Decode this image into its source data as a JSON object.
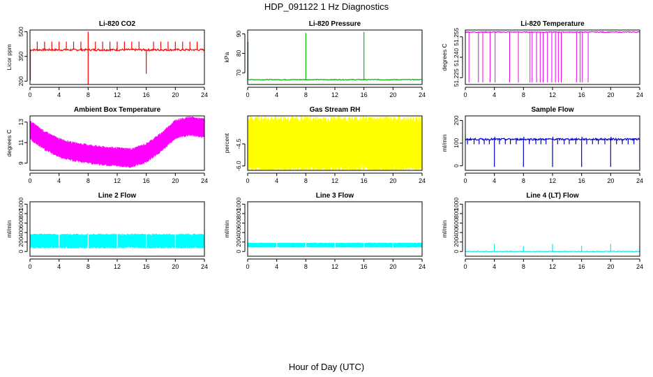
{
  "title": "HDP_091122  1 Hz Diagnostics",
  "xlabel": "Hour of Day (UTC)",
  "chart_data": [
    {
      "type": "line",
      "title": "Li-820 CO2",
      "ylabel": "Licor ppm",
      "color": "#ff0000",
      "xlim": [
        0,
        24
      ],
      "xticks": [
        "0",
        "4",
        "8",
        "12",
        "16",
        "20",
        "24"
      ],
      "ylim": [
        180,
        510
      ],
      "yticks": [
        {
          "v": 200,
          "t": "200"
        },
        {
          "v": 350,
          "t": "350"
        },
        {
          "v": 500,
          "t": "500"
        }
      ],
      "baseline": 390,
      "noise": 6,
      "spikes": [
        1,
        2,
        3,
        4,
        5,
        6,
        7,
        9,
        10,
        11,
        12,
        13,
        14,
        15,
        17,
        18,
        19,
        20,
        21,
        22,
        23
      ],
      "spike_to": 440,
      "big_spikes": [
        {
          "x": 0.05,
          "to": 205
        },
        {
          "x": 8.0,
          "to": 180
        },
        {
          "x": 8.0,
          "to": 500
        },
        {
          "x": 16.0,
          "to": 245
        }
      ]
    },
    {
      "type": "line",
      "title": "Li-820 Pressure",
      "ylabel": "kPa",
      "color": "#00bb00",
      "xlim": [
        0,
        24
      ],
      "xticks": [
        "0",
        "4",
        "8",
        "12",
        "16",
        "20",
        "24"
      ],
      "ylim": [
        64,
        92
      ],
      "yticks": [
        {
          "v": 70,
          "t": "70"
        },
        {
          "v": 80,
          "t": "80"
        },
        {
          "v": 90,
          "t": "90"
        }
      ],
      "baseline": 66.5,
      "noise": 0.2,
      "spikes": [],
      "spike_to": 66.5,
      "big_spikes": [
        {
          "x": 0.05,
          "to": 86
        },
        {
          "x": 8.0,
          "to": 90.5
        },
        {
          "x": 16.0,
          "to": 91
        },
        {
          "x": 24.0,
          "to": 90
        }
      ]
    },
    {
      "type": "line",
      "title": "Li-820 Temperature",
      "ylabel": "degrees C",
      "color": "#ee00ee",
      "xlim": [
        0,
        24
      ],
      "xticks": [
        "0",
        "4",
        "8",
        "12",
        "16",
        "20",
        "24"
      ],
      "ylim": [
        51.22,
        51.26
      ],
      "yticks": [
        {
          "v": 51.225,
          "t": "51.225"
        },
        {
          "v": 51.24,
          "t": "51.240"
        },
        {
          "v": 51.255,
          "t": "51.255"
        }
      ],
      "baseline": 51.2585,
      "noise": 0.0003,
      "spikes": [],
      "spike_to": 51.2585,
      "drops": [
        0.5,
        1.8,
        2.4,
        3.4,
        4.1,
        6.1,
        7.3,
        8.9,
        9.2,
        9.8,
        10.3,
        10.7,
        11.3,
        11.9,
        12.4,
        12.8,
        13.2,
        15.3,
        15.8,
        16.1,
        16.9
      ],
      "drop_to": 51.2215
    },
    {
      "type": "band",
      "title": "Ambient Box Temperature",
      "ylabel": "degrees C",
      "color": "#ff00ff",
      "xlim": [
        0,
        24
      ],
      "xticks": [
        "0",
        "4",
        "8",
        "12",
        "16",
        "20",
        "24"
      ],
      "ylim": [
        8.3,
        13.6
      ],
      "yticks": [
        {
          "v": 9,
          "t": "9"
        },
        {
          "v": 11,
          "t": "11"
        },
        {
          "v": 13,
          "t": "13"
        }
      ],
      "curve": [
        [
          0,
          12.2
        ],
        [
          2,
          11.2
        ],
        [
          4,
          10.5
        ],
        [
          6,
          10.1
        ],
        [
          8,
          9.9
        ],
        [
          10,
          9.7
        ],
        [
          12,
          9.6
        ],
        [
          14,
          9.5
        ],
        [
          16,
          10.0
        ],
        [
          18,
          11.0
        ],
        [
          20,
          12.3
        ],
        [
          22,
          12.6
        ],
        [
          24,
          12.4
        ]
      ],
      "spread": 1.5
    },
    {
      "type": "band",
      "title": "Gas Stream RH",
      "ylabel": "percent",
      "color": "#ffff00",
      "xlim": [
        0,
        24
      ],
      "xticks": [
        "0",
        "4",
        "8",
        "12",
        "16",
        "20",
        "24"
      ],
      "ylim": [
        -6.3,
        -2.6
      ],
      "yticks": [
        {
          "v": -4.5,
          "t": "-4.5"
        },
        {
          "v": -6.0,
          "t": "-6.0"
        }
      ],
      "curve": [
        [
          0,
          -4.5
        ],
        [
          24,
          -4.5
        ]
      ],
      "spread": 2.9
    },
    {
      "type": "line",
      "title": "Sample Flow",
      "ylabel": "ml/min",
      "color": "#0000cc",
      "xlim": [
        0,
        24
      ],
      "xticks": [
        "0",
        "4",
        "8",
        "12",
        "16",
        "20",
        "24"
      ],
      "ylim": [
        -20,
        220
      ],
      "yticks": [
        {
          "v": 0,
          "t": "0"
        },
        {
          "v": 100,
          "t": "100"
        },
        {
          "v": 200,
          "t": "200"
        }
      ],
      "baseline": 117,
      "noise": 4,
      "spikes": [
        0.3,
        1.2,
        1.9,
        2.6,
        3.3,
        4.7,
        5.5,
        6.2,
        7.0,
        8.8,
        9.7,
        10.4,
        11.1,
        12.7,
        13.6,
        14.3,
        15.2,
        16.7,
        17.5,
        18.3,
        19.2,
        20.8,
        21.6,
        22.4,
        23.2
      ],
      "spike_to": 95,
      "big_spikes": [
        {
          "x": 4.0,
          "to": -5
        },
        {
          "x": 8.0,
          "to": -5
        },
        {
          "x": 12.0,
          "to": -5
        },
        {
          "x": 16.0,
          "to": -5
        },
        {
          "x": 20.0,
          "to": -5
        },
        {
          "x": 24.0,
          "to": -5
        },
        {
          "x": 0.0,
          "to": 135
        },
        {
          "x": 4.05,
          "to": 128
        },
        {
          "x": 8.05,
          "to": 128
        },
        {
          "x": 12.05,
          "to": 128
        },
        {
          "x": 16.05,
          "to": 128
        },
        {
          "x": 20.05,
          "to": 128
        }
      ]
    },
    {
      "type": "band",
      "title": "Line 2 Flow",
      "ylabel": "ml/min",
      "color": "#00ffff",
      "xlim": [
        0,
        24
      ],
      "xticks": [
        "0",
        "4",
        "8",
        "12",
        "16",
        "20",
        "24"
      ],
      "ylim": [
        -100,
        1050
      ],
      "yticks": [
        {
          "v": 0,
          "t": "0"
        },
        {
          "v": 200,
          "t": "200"
        },
        {
          "v": 400,
          "t": "400"
        },
        {
          "v": 600,
          "t": "600"
        },
        {
          "v": 800,
          "t": "800"
        },
        {
          "v": 1000,
          "t": "1000"
        }
      ],
      "curve": [
        [
          0,
          220
        ],
        [
          24,
          220
        ]
      ],
      "spread": 240,
      "gaps": [
        4,
        8,
        12,
        16,
        20
      ]
    },
    {
      "type": "band",
      "title": "Line 3 Flow",
      "ylabel": "ml/min",
      "color": "#00ffff",
      "xlim": [
        0,
        24
      ],
      "xticks": [
        "0",
        "4",
        "8",
        "12",
        "16",
        "20",
        "24"
      ],
      "ylim": [
        -100,
        1050
      ],
      "yticks": [
        {
          "v": 0,
          "t": "0"
        },
        {
          "v": 200,
          "t": "200"
        },
        {
          "v": 400,
          "t": "400"
        },
        {
          "v": 600,
          "t": "600"
        },
        {
          "v": 800,
          "t": "800"
        },
        {
          "v": 1000,
          "t": "1000"
        }
      ],
      "curve": [
        [
          0,
          135
        ],
        [
          24,
          135
        ]
      ],
      "spread": 80,
      "gaps": [
        4,
        8,
        12,
        16,
        20
      ]
    },
    {
      "type": "line",
      "title": "Line 4 (LT) Flow",
      "ylabel": "ml/min",
      "color": "#00eeee",
      "xlim": [
        0,
        24
      ],
      "xticks": [
        "0",
        "4",
        "8",
        "12",
        "16",
        "20",
        "24"
      ],
      "ylim": [
        -100,
        1050
      ],
      "yticks": [
        {
          "v": 0,
          "t": "0"
        },
        {
          "v": 200,
          "t": "200"
        },
        {
          "v": 400,
          "t": "400"
        },
        {
          "v": 600,
          "t": "600"
        },
        {
          "v": 800,
          "t": "800"
        },
        {
          "v": 1000,
          "t": "1000"
        }
      ],
      "baseline": 0,
      "noise": 6,
      "spikes": [],
      "spike_to": 0,
      "big_spikes": [
        {
          "x": 4.0,
          "to": 160
        },
        {
          "x": 8.0,
          "to": 110
        },
        {
          "x": 12.0,
          "to": 160
        },
        {
          "x": 16.0,
          "to": 120
        },
        {
          "x": 20.0,
          "to": 160
        },
        {
          "x": 24.0,
          "to": 110
        }
      ]
    }
  ]
}
